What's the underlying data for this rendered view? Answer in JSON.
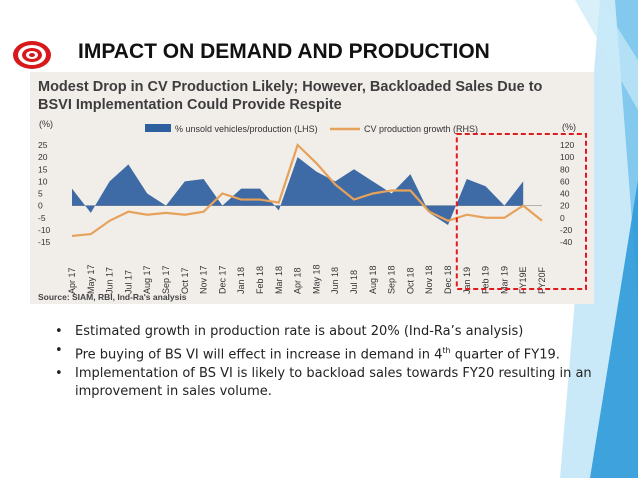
{
  "slide": {
    "title": "IMPACT ON DEMAND AND PRODUCTION",
    "icon": "target-icon",
    "accent_colors": [
      "#3b9fd6",
      "#7cc9ee",
      "#1f78b4"
    ],
    "title_icon_color": "#d7191c"
  },
  "chart_data": {
    "type": "area",
    "title": "Modest Drop in CV Production Likely; However, Backloaded Sales Due to BSVI Implementation Could Provide Respite",
    "left_unit": "(%)",
    "right_unit": "(%)",
    "categories": [
      "Apr 17",
      "May 17",
      "Jun 17",
      "Jul 17",
      "Aug 17",
      "Sep 17",
      "Oct 17",
      "Nov 17",
      "Dec 17",
      "Jan 18",
      "Feb 18",
      "Mar 18",
      "Apr 18",
      "May 18",
      "Jun 18",
      "Jul 18",
      "Aug 18",
      "Sep 18",
      "Oct 18",
      "Nov 18",
      "Dec 18",
      "Jan 19",
      "Feb 19",
      "Mar 19",
      "FY19E",
      "FY20F"
    ],
    "left_ticks": [
      "25",
      "20",
      "15",
      "10",
      "5",
      "0",
      "-5",
      "-10",
      "-15"
    ],
    "right_ticks": [
      "120",
      "100",
      "80",
      "60",
      "40",
      "20",
      "0",
      "-20",
      "-40"
    ],
    "ylim_left": [
      -15,
      25
    ],
    "ylim_right": [
      -40,
      120
    ],
    "series": [
      {
        "name": "% unsold vehicles/production (LHS)",
        "axis": "left",
        "style": "area",
        "color": "#2f5f9e",
        "values": [
          7,
          -3,
          10,
          17,
          5,
          0,
          10,
          11,
          0,
          7,
          7,
          -2,
          20,
          14,
          10,
          15,
          10,
          5,
          13,
          -3,
          -8,
          11,
          8,
          0,
          10,
          null
        ]
      },
      {
        "name": "CV production growth (RHS)",
        "axis": "right",
        "style": "line",
        "color": "#e6a25a",
        "values": [
          -30,
          -27,
          -5,
          10,
          5,
          8,
          5,
          10,
          40,
          30,
          30,
          25,
          120,
          90,
          55,
          30,
          40,
          45,
          45,
          10,
          -5,
          5,
          0,
          0,
          20,
          -5
        ]
      }
    ],
    "highlight_box": {
      "from": "Jan 19",
      "to": "FY20F",
      "color": "#e01b1b",
      "style": "dashed"
    },
    "source": "Source: SIAM, RBI, Ind-Ra's analysis",
    "grid": false,
    "legend": "top"
  },
  "bullets": [
    {
      "text": "Estimated growth in production rate is about 20% (Ind-Ra’s analysis)"
    },
    {
      "text_before": "Pre buying of BS VI will effect in increase in demand in 4",
      "sup": "th",
      "text_after": " quarter of FY19."
    },
    {
      "text": "Implementation of BS VI is likely to backload sales towards FY20 resulting in an improvement in sales volume."
    }
  ],
  "bullet_symbol": "•"
}
